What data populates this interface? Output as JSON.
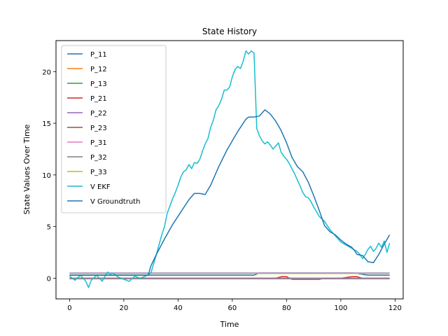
{
  "chart_data": {
    "type": "line",
    "title": "State History",
    "xlabel": "Time",
    "ylabel": "State Values Over Time",
    "xlim": [
      -5,
      123
    ],
    "ylim": [
      -2,
      23
    ],
    "xticks": [
      0,
      20,
      40,
      60,
      80,
      100,
      120
    ],
    "yticks": [
      0,
      5,
      10,
      15,
      20
    ],
    "grid": false,
    "legend_position": "top-left",
    "series": [
      {
        "name": "P_11",
        "color": "#1f77b4",
        "x": [
          0,
          20,
          40,
          60,
          68,
          70,
          80,
          100,
          105,
          110,
          118
        ],
        "y": [
          0.3,
          0.3,
          0.3,
          0.3,
          0.3,
          0.5,
          0.5,
          0.5,
          0.5,
          0.3,
          0.3
        ]
      },
      {
        "name": "P_12",
        "color": "#ff7f0e",
        "x": [
          0,
          118
        ],
        "y": [
          0.0,
          0.0
        ]
      },
      {
        "name": "P_13",
        "color": "#2ca02c",
        "x": [
          0,
          118
        ],
        "y": [
          0.0,
          0.0
        ]
      },
      {
        "name": "P_21",
        "color": "#d62728",
        "x": [
          0,
          76,
          78,
          80,
          82,
          92,
          94,
          100,
          104,
          106,
          108,
          118
        ],
        "y": [
          0.0,
          0.0,
          0.15,
          0.15,
          -0.1,
          -0.1,
          0.0,
          0.0,
          0.15,
          0.15,
          0.0,
          0.0
        ]
      },
      {
        "name": "P_22",
        "color": "#9467bd",
        "x": [
          0,
          118
        ],
        "y": [
          0.5,
          0.5
        ]
      },
      {
        "name": "P_23",
        "color": "#8c564b",
        "x": [
          0,
          118
        ],
        "y": [
          0.0,
          0.0
        ]
      },
      {
        "name": "P_31",
        "color": "#e377c2",
        "x": [
          0,
          118
        ],
        "y": [
          0.0,
          0.0
        ]
      },
      {
        "name": "P_32",
        "color": "#7f7f7f",
        "x": [
          0,
          118
        ],
        "y": [
          -0.05,
          -0.05
        ]
      },
      {
        "name": "P_33",
        "color": "#bcbd22",
        "x": [
          0,
          118
        ],
        "y": [
          0.45,
          0.45
        ]
      },
      {
        "name": "V EKF",
        "color": "#17becf",
        "x": [
          0,
          2,
          4,
          6,
          7,
          8,
          10,
          12,
          14,
          15,
          16,
          18,
          20,
          22,
          24,
          26,
          28,
          30,
          32,
          34,
          35,
          36,
          37,
          38,
          39,
          40,
          41,
          42,
          43,
          44,
          45,
          46,
          47,
          48,
          49,
          50,
          51,
          52,
          53,
          54,
          55,
          56,
          57,
          58,
          59,
          60,
          61,
          62,
          63,
          64,
          65,
          66,
          67,
          68,
          69,
          70,
          71,
          72,
          73,
          74,
          75,
          76,
          77,
          78,
          79,
          80,
          81,
          82,
          83,
          84,
          85,
          86,
          87,
          88,
          89,
          90,
          92,
          94,
          96,
          98,
          100,
          102,
          104,
          106,
          107,
          108,
          109,
          110,
          111,
          112,
          113,
          114,
          115,
          116,
          117,
          118
        ],
        "y": [
          0.2,
          -0.2,
          0.3,
          -0.3,
          -0.9,
          -0.2,
          0.3,
          -0.3,
          0.6,
          0.4,
          0.5,
          0.1,
          -0.1,
          -0.3,
          0.2,
          0.0,
          0.2,
          0.5,
          2.3,
          4.2,
          5.0,
          6.3,
          7.0,
          7.7,
          8.3,
          9.0,
          9.8,
          10.3,
          10.5,
          11.0,
          10.6,
          11.2,
          11.1,
          11.5,
          12.3,
          13.0,
          13.5,
          14.6,
          15.3,
          16.3,
          16.7,
          17.3,
          18.2,
          18.2,
          18.5,
          19.5,
          20.2,
          20.5,
          20.3,
          21.0,
          22.0,
          21.7,
          22.0,
          21.8,
          14.5,
          13.8,
          13.3,
          13.0,
          13.2,
          12.9,
          12.5,
          12.8,
          13.1,
          12.2,
          11.8,
          11.5,
          11.1,
          10.6,
          10.1,
          9.5,
          8.9,
          8.3,
          7.9,
          7.8,
          7.4,
          6.9,
          6.0,
          5.5,
          4.7,
          4.1,
          3.5,
          3.2,
          2.9,
          2.6,
          2.3,
          1.9,
          2.3,
          2.8,
          3.1,
          2.6,
          2.9,
          3.4,
          3.0,
          3.6,
          2.5,
          3.4
        ]
      },
      {
        "name": "V Groundtruth",
        "color": "#1f77b4",
        "x": [
          0,
          20,
          29,
          30,
          32,
          35,
          38,
          40,
          42,
          44,
          46,
          48,
          50,
          52,
          55,
          58,
          62,
          65,
          66,
          68,
          70,
          72,
          74,
          76,
          78,
          80,
          82,
          84,
          86,
          88,
          90,
          92,
          94,
          96,
          98,
          100,
          102,
          104,
          105,
          106,
          108,
          110,
          112,
          114,
          116,
          118
        ],
        "y": [
          0.3,
          0.3,
          0.3,
          1.2,
          2.3,
          3.8,
          5.2,
          6.0,
          6.8,
          7.6,
          8.2,
          8.2,
          8.1,
          9.0,
          10.8,
          12.4,
          14.2,
          15.4,
          15.6,
          15.6,
          15.7,
          16.3,
          15.9,
          15.2,
          14.3,
          13.1,
          11.7,
          10.8,
          10.3,
          9.3,
          8.0,
          6.6,
          5.1,
          4.5,
          4.2,
          3.7,
          3.3,
          3.0,
          2.7,
          2.3,
          2.2,
          1.6,
          1.5,
          2.3,
          3.3,
          4.2
        ]
      }
    ]
  }
}
